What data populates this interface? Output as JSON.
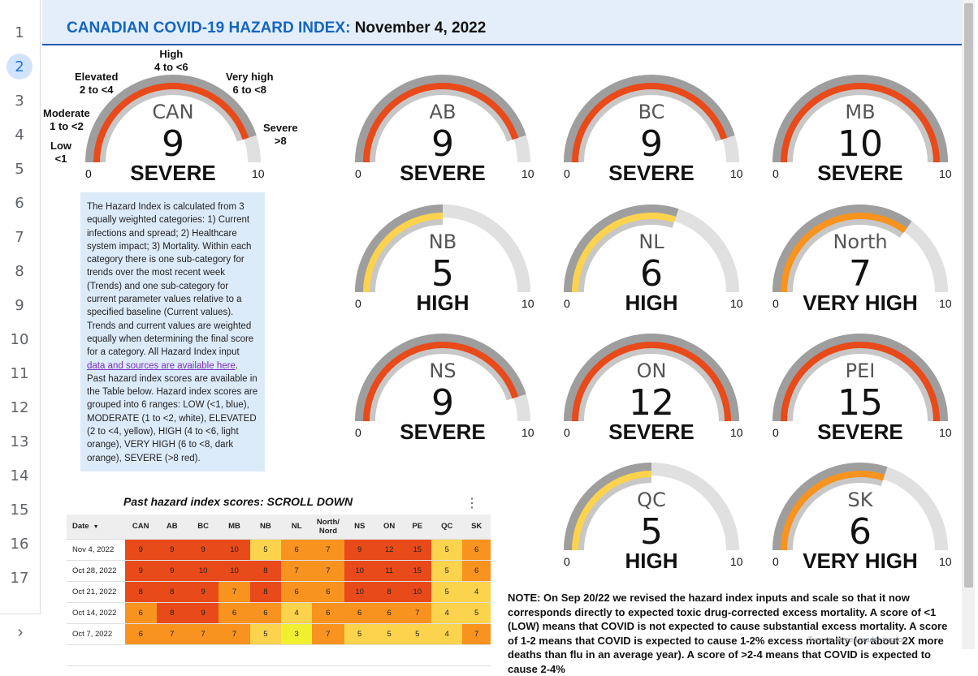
{
  "header": {
    "title": "CANADIAN COVID-19 HAZARD INDEX:",
    "date": "November 4, 2022"
  },
  "gutter": {
    "rows": [
      "1",
      "2",
      "3",
      "4",
      "5",
      "6",
      "7",
      "8",
      "9",
      "10",
      "11",
      "12",
      "13",
      "14",
      "15",
      "16",
      "17"
    ],
    "active_row": "2",
    "expand_icon": "chevron-right-icon"
  },
  "colors": {
    "severe": "#e84a1a",
    "very_high": "#f7931e",
    "high": "#fcd34d",
    "track_inner": "#c7c7c7",
    "track_outer": "#9e9e9e",
    "remaining": "#e0e0e0",
    "header_blue": "#1565c0"
  },
  "gauge_scale": {
    "min": "0",
    "max": "10"
  },
  "can_ranges": [
    {
      "label": "Low",
      "range": "<1"
    },
    {
      "label": "Moderate",
      "range": "1 to <2"
    },
    {
      "label": "Elevated",
      "range": "2 to <4"
    },
    {
      "label": "High",
      "range": "4 to <6"
    },
    {
      "label": "Very high",
      "range": "6 to <8"
    },
    {
      "label": "Severe",
      "range": ">8"
    }
  ],
  "gauges": [
    {
      "name": "CAN",
      "value": "9",
      "level": "SEVERE",
      "fill": 0.9,
      "color": "#e84a1a"
    },
    {
      "name": "AB",
      "value": "9",
      "level": "SEVERE",
      "fill": 0.9,
      "color": "#e84a1a"
    },
    {
      "name": "BC",
      "value": "9",
      "level": "SEVERE",
      "fill": 0.9,
      "color": "#e84a1a"
    },
    {
      "name": "MB",
      "value": "10",
      "level": "SEVERE",
      "fill": 1.0,
      "color": "#e84a1a"
    },
    {
      "name": "NB",
      "value": "5",
      "level": "HIGH",
      "fill": 0.5,
      "color": "#fcd34d"
    },
    {
      "name": "NL",
      "value": "6",
      "level": "HIGH",
      "fill": 0.6,
      "color": "#fcd34d"
    },
    {
      "name": "North",
      "value": "7",
      "level": "VERY HIGH",
      "fill": 0.7,
      "color": "#f7931e"
    },
    {
      "name": "NS",
      "value": "9",
      "level": "SEVERE",
      "fill": 0.9,
      "color": "#e84a1a"
    },
    {
      "name": "ON",
      "value": "12",
      "level": "SEVERE",
      "fill": 1.0,
      "color": "#e84a1a"
    },
    {
      "name": "PEI",
      "value": "15",
      "level": "SEVERE",
      "fill": 1.0,
      "color": "#e84a1a"
    },
    {
      "name": "QC",
      "value": "5",
      "level": "HIGH",
      "fill": 0.5,
      "color": "#fcd34d"
    },
    {
      "name": "SK",
      "value": "6",
      "level": "VERY HIGH",
      "fill": 0.6,
      "color": "#f7931e"
    }
  ],
  "description": {
    "text_before": "The Hazard Index is calculated from 3 equally weighted categories: 1) Current infections and spread; 2) Healthcare system impact; 3) Mortality. Within each category there is one sub-category for trends over the most recent week (Trends) and one sub-category for current parameter values relative to a specified baseline (Current values). Trends and current values are weighted equally when determining the final score for a category. All Hazard Index input ",
    "link": "data and sources are available here",
    "text_after": ". Past hazard index scores are available in the Table below. Hazard index scores are grouped into 6 ranges: LOW (<1, blue), MODERATE (1 to <2, white), ELEVATED (2 to <4, yellow), HIGH (4 to <6, light orange), VERY HIGH (6 to <8, dark orange), SEVERE (>8 red)."
  },
  "table": {
    "title": "Past hazard index scores: SCROLL DOWN",
    "menu_icon": "more-vert-icon",
    "sort_icon": "sort-desc-icon",
    "columns": [
      "Date",
      "CAN",
      "AB",
      "BC",
      "MB",
      "NB",
      "NL",
      "North/\nNord",
      "NS",
      "ON",
      "PE",
      "QC",
      "SK"
    ],
    "rows": [
      {
        "date": "Nov 4, 2022",
        "cells": [
          "9",
          "9",
          "9",
          "10",
          "5",
          "6",
          "7",
          "9",
          "12",
          "15",
          "5",
          "6"
        ]
      },
      {
        "date": "Oct 28, 2022",
        "cells": [
          "9",
          "9",
          "10",
          "10",
          "8",
          "7",
          "7",
          "10",
          "11",
          "15",
          "5",
          "6"
        ]
      },
      {
        "date": "Oct 21, 2022",
        "cells": [
          "8",
          "8",
          "9",
          "7",
          "8",
          "6",
          "6",
          "10",
          "8",
          "10",
          "5",
          "4"
        ]
      },
      {
        "date": "Oct 14, 2022",
        "cells": [
          "6",
          "8",
          "9",
          "6",
          "6",
          "4",
          "6",
          "6",
          "6",
          "7",
          "4",
          "5"
        ]
      },
      {
        "date": "Oct 7, 2022",
        "cells": [
          "6",
          "7",
          "7",
          "7",
          "5",
          "3",
          "7",
          "5",
          "5",
          "5",
          "4",
          "7"
        ]
      },
      {
        "date": "",
        "cells": [
          "",
          "",
          "",
          "",
          "",
          "",
          "",
          "",
          "",
          "",
          "",
          ""
        ]
      }
    ]
  },
  "note": {
    "text": "NOTE: On Sep 20/22 we revised the hazard index inputs and scale so that it now corresponds directly to expected toxic drug-corrected excess mortality. A score of <1 (LOW) means that COVID is not expected to cause substantial excess mortality. A score of 1-2 means that COVID is expected to cause 1-2% excess mortality (or about 2X more deaths than flu in an average year). A score of >2-4 means that COVID is expected to cause 2-4%",
    "footer": "Turn on screen reader support"
  }
}
